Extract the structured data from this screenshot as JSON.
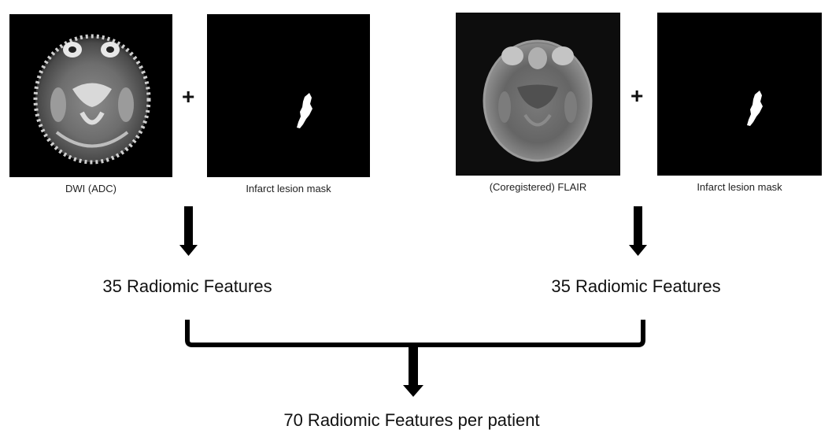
{
  "diagram": {
    "left_branch": {
      "image_caption": "DWI (ADC)",
      "mask_caption": "Infarct lesion mask",
      "plus_symbol": "+",
      "feature_label": "35 Radiomic Features"
    },
    "right_branch": {
      "image_caption": "(Coregistered) FLAIR",
      "mask_caption": "Infarct lesion mask",
      "plus_symbol": "+",
      "feature_label": "35 Radiomic Features"
    },
    "result_label": "70 Radiomic Features per patient"
  },
  "colors": {
    "panel_background": "#000000",
    "arrow": "#000000",
    "text": "#111111"
  }
}
